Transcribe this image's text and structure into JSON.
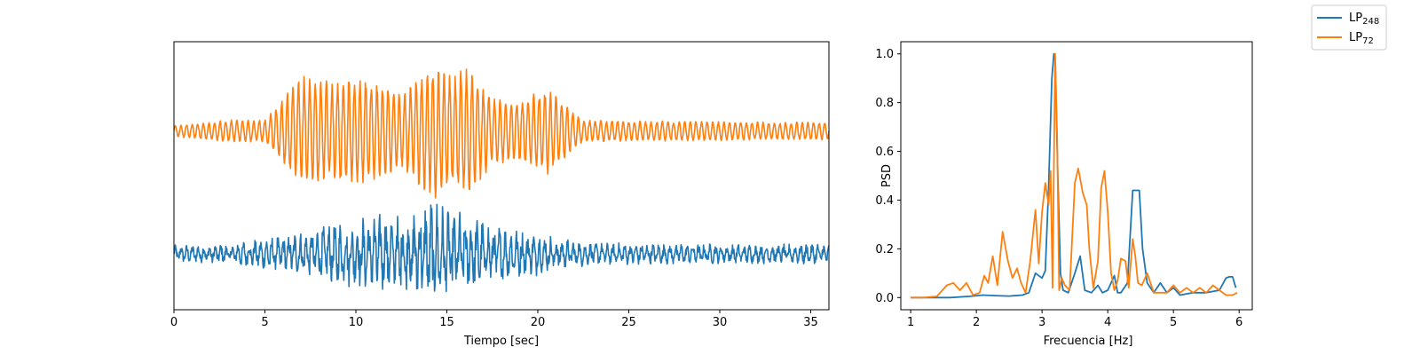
{
  "chart_data": [
    {
      "type": "line",
      "title": "",
      "xlabel": "Tiempo [sec]",
      "ylabel": "",
      "xlim": [
        0,
        36
      ],
      "xticks": [
        0,
        5,
        10,
        15,
        20,
        25,
        30,
        35
      ],
      "ylim": [
        -1.05,
        1.35
      ],
      "yticks_visible": false,
      "grid": false,
      "series": [
        {
          "name": "LP248",
          "color": "#1f77b4",
          "offset": -0.55,
          "envelope_t": [
            0,
            3,
            5.5,
            7,
            8.5,
            10,
            11,
            12,
            13,
            14.2,
            15,
            16,
            17.5,
            19,
            20,
            21.5,
            23,
            26,
            30,
            33,
            36
          ],
          "envelope_a": [
            0.08,
            0.1,
            0.16,
            0.2,
            0.28,
            0.32,
            0.38,
            0.36,
            0.42,
            0.52,
            0.42,
            0.38,
            0.28,
            0.22,
            0.2,
            0.14,
            0.1,
            0.1,
            0.09,
            0.09,
            0.1
          ],
          "carrier_hz": 3.2,
          "noise": 0.45
        },
        {
          "name": "LP72",
          "color": "#ff7f0e",
          "offset": 0.55,
          "envelope_t": [
            0,
            3,
            5,
            6.2,
            7,
            8.5,
            10,
            11,
            12.5,
            14.3,
            15.2,
            16.2,
            17.5,
            19,
            20.5,
            21.5,
            22.5,
            25,
            30,
            33,
            36
          ],
          "envelope_a": [
            0.05,
            0.1,
            0.1,
            0.35,
            0.5,
            0.45,
            0.5,
            0.45,
            0.35,
            0.62,
            0.5,
            0.58,
            0.3,
            0.28,
            0.4,
            0.25,
            0.1,
            0.09,
            0.09,
            0.08,
            0.08
          ],
          "carrier_hz": 3.25,
          "noise": 0.12
        }
      ]
    },
    {
      "type": "line",
      "title": "",
      "xlabel": "Frecuencia [Hz]",
      "ylabel": "PSD",
      "xlim": [
        0.85,
        6.2
      ],
      "ylim": [
        -0.05,
        1.05
      ],
      "xticks": [
        1,
        2,
        3,
        4,
        5,
        6
      ],
      "yticks": [
        0.0,
        0.2,
        0.4,
        0.6,
        0.8,
        1.0
      ],
      "grid": false,
      "series": [
        {
          "name": "LP248",
          "color": "#1f77b4",
          "x": [
            1.0,
            1.3,
            1.6,
            1.9,
            2.1,
            2.3,
            2.5,
            2.7,
            2.8,
            2.9,
            3.0,
            3.05,
            3.1,
            3.15,
            3.18,
            3.2,
            3.24,
            3.28,
            3.32,
            3.4,
            3.5,
            3.58,
            3.65,
            3.75,
            3.85,
            3.92,
            4.0,
            4.1,
            4.15,
            4.2,
            4.3,
            4.38,
            4.43,
            4.48,
            4.53,
            4.6,
            4.7,
            4.8,
            4.9,
            5.0,
            5.1,
            5.3,
            5.5,
            5.7,
            5.8,
            5.85,
            5.9,
            5.95
          ],
          "y": [
            0.0,
            0.0,
            0.0,
            0.005,
            0.01,
            0.008,
            0.006,
            0.01,
            0.02,
            0.1,
            0.08,
            0.11,
            0.45,
            0.9,
            1.0,
            0.98,
            0.5,
            0.1,
            0.03,
            0.02,
            0.1,
            0.17,
            0.03,
            0.02,
            0.05,
            0.02,
            0.03,
            0.09,
            0.02,
            0.02,
            0.06,
            0.44,
            0.44,
            0.44,
            0.2,
            0.06,
            0.02,
            0.06,
            0.02,
            0.04,
            0.01,
            0.02,
            0.02,
            0.03,
            0.08,
            0.085,
            0.085,
            0.04
          ]
        },
        {
          "name": "LP72",
          "color": "#ff7f0e",
          "x": [
            1.0,
            1.2,
            1.4,
            1.55,
            1.65,
            1.75,
            1.85,
            1.95,
            2.05,
            2.12,
            2.18,
            2.25,
            2.32,
            2.4,
            2.48,
            2.55,
            2.62,
            2.68,
            2.75,
            2.82,
            2.9,
            2.95,
            3.0,
            3.05,
            3.1,
            3.13,
            3.16,
            3.2,
            3.23,
            3.26,
            3.3,
            3.35,
            3.42,
            3.5,
            3.55,
            3.62,
            3.68,
            3.72,
            3.78,
            3.85,
            3.9,
            3.95,
            4.0,
            4.05,
            4.1,
            4.15,
            4.2,
            4.27,
            4.32,
            4.38,
            4.42,
            4.46,
            4.52,
            4.6,
            4.7,
            4.8,
            4.9,
            5.0,
            5.1,
            5.2,
            5.3,
            5.4,
            5.5,
            5.6,
            5.7,
            5.8,
            5.9,
            5.97
          ],
          "y": [
            0.0,
            0.0,
            0.005,
            0.05,
            0.06,
            0.03,
            0.06,
            0.01,
            0.02,
            0.09,
            0.06,
            0.17,
            0.05,
            0.27,
            0.15,
            0.08,
            0.12,
            0.06,
            0.02,
            0.15,
            0.36,
            0.14,
            0.35,
            0.47,
            0.38,
            0.52,
            0.04,
            1.0,
            0.65,
            0.03,
            0.08,
            0.05,
            0.03,
            0.47,
            0.53,
            0.43,
            0.38,
            0.2,
            0.04,
            0.15,
            0.45,
            0.52,
            0.35,
            0.1,
            0.03,
            0.07,
            0.16,
            0.15,
            0.04,
            0.24,
            0.17,
            0.06,
            0.05,
            0.1,
            0.02,
            0.02,
            0.02,
            0.05,
            0.02,
            0.04,
            0.02,
            0.04,
            0.02,
            0.05,
            0.03,
            0.01,
            0.01,
            0.02
          ]
        }
      ]
    }
  ],
  "legend": {
    "placement": "top-right",
    "entries": [
      {
        "label_main": "LP",
        "label_sub": "248",
        "color": "#1f77b4"
      },
      {
        "label_main": "LP",
        "label_sub": "72",
        "color": "#ff7f0e"
      }
    ]
  }
}
